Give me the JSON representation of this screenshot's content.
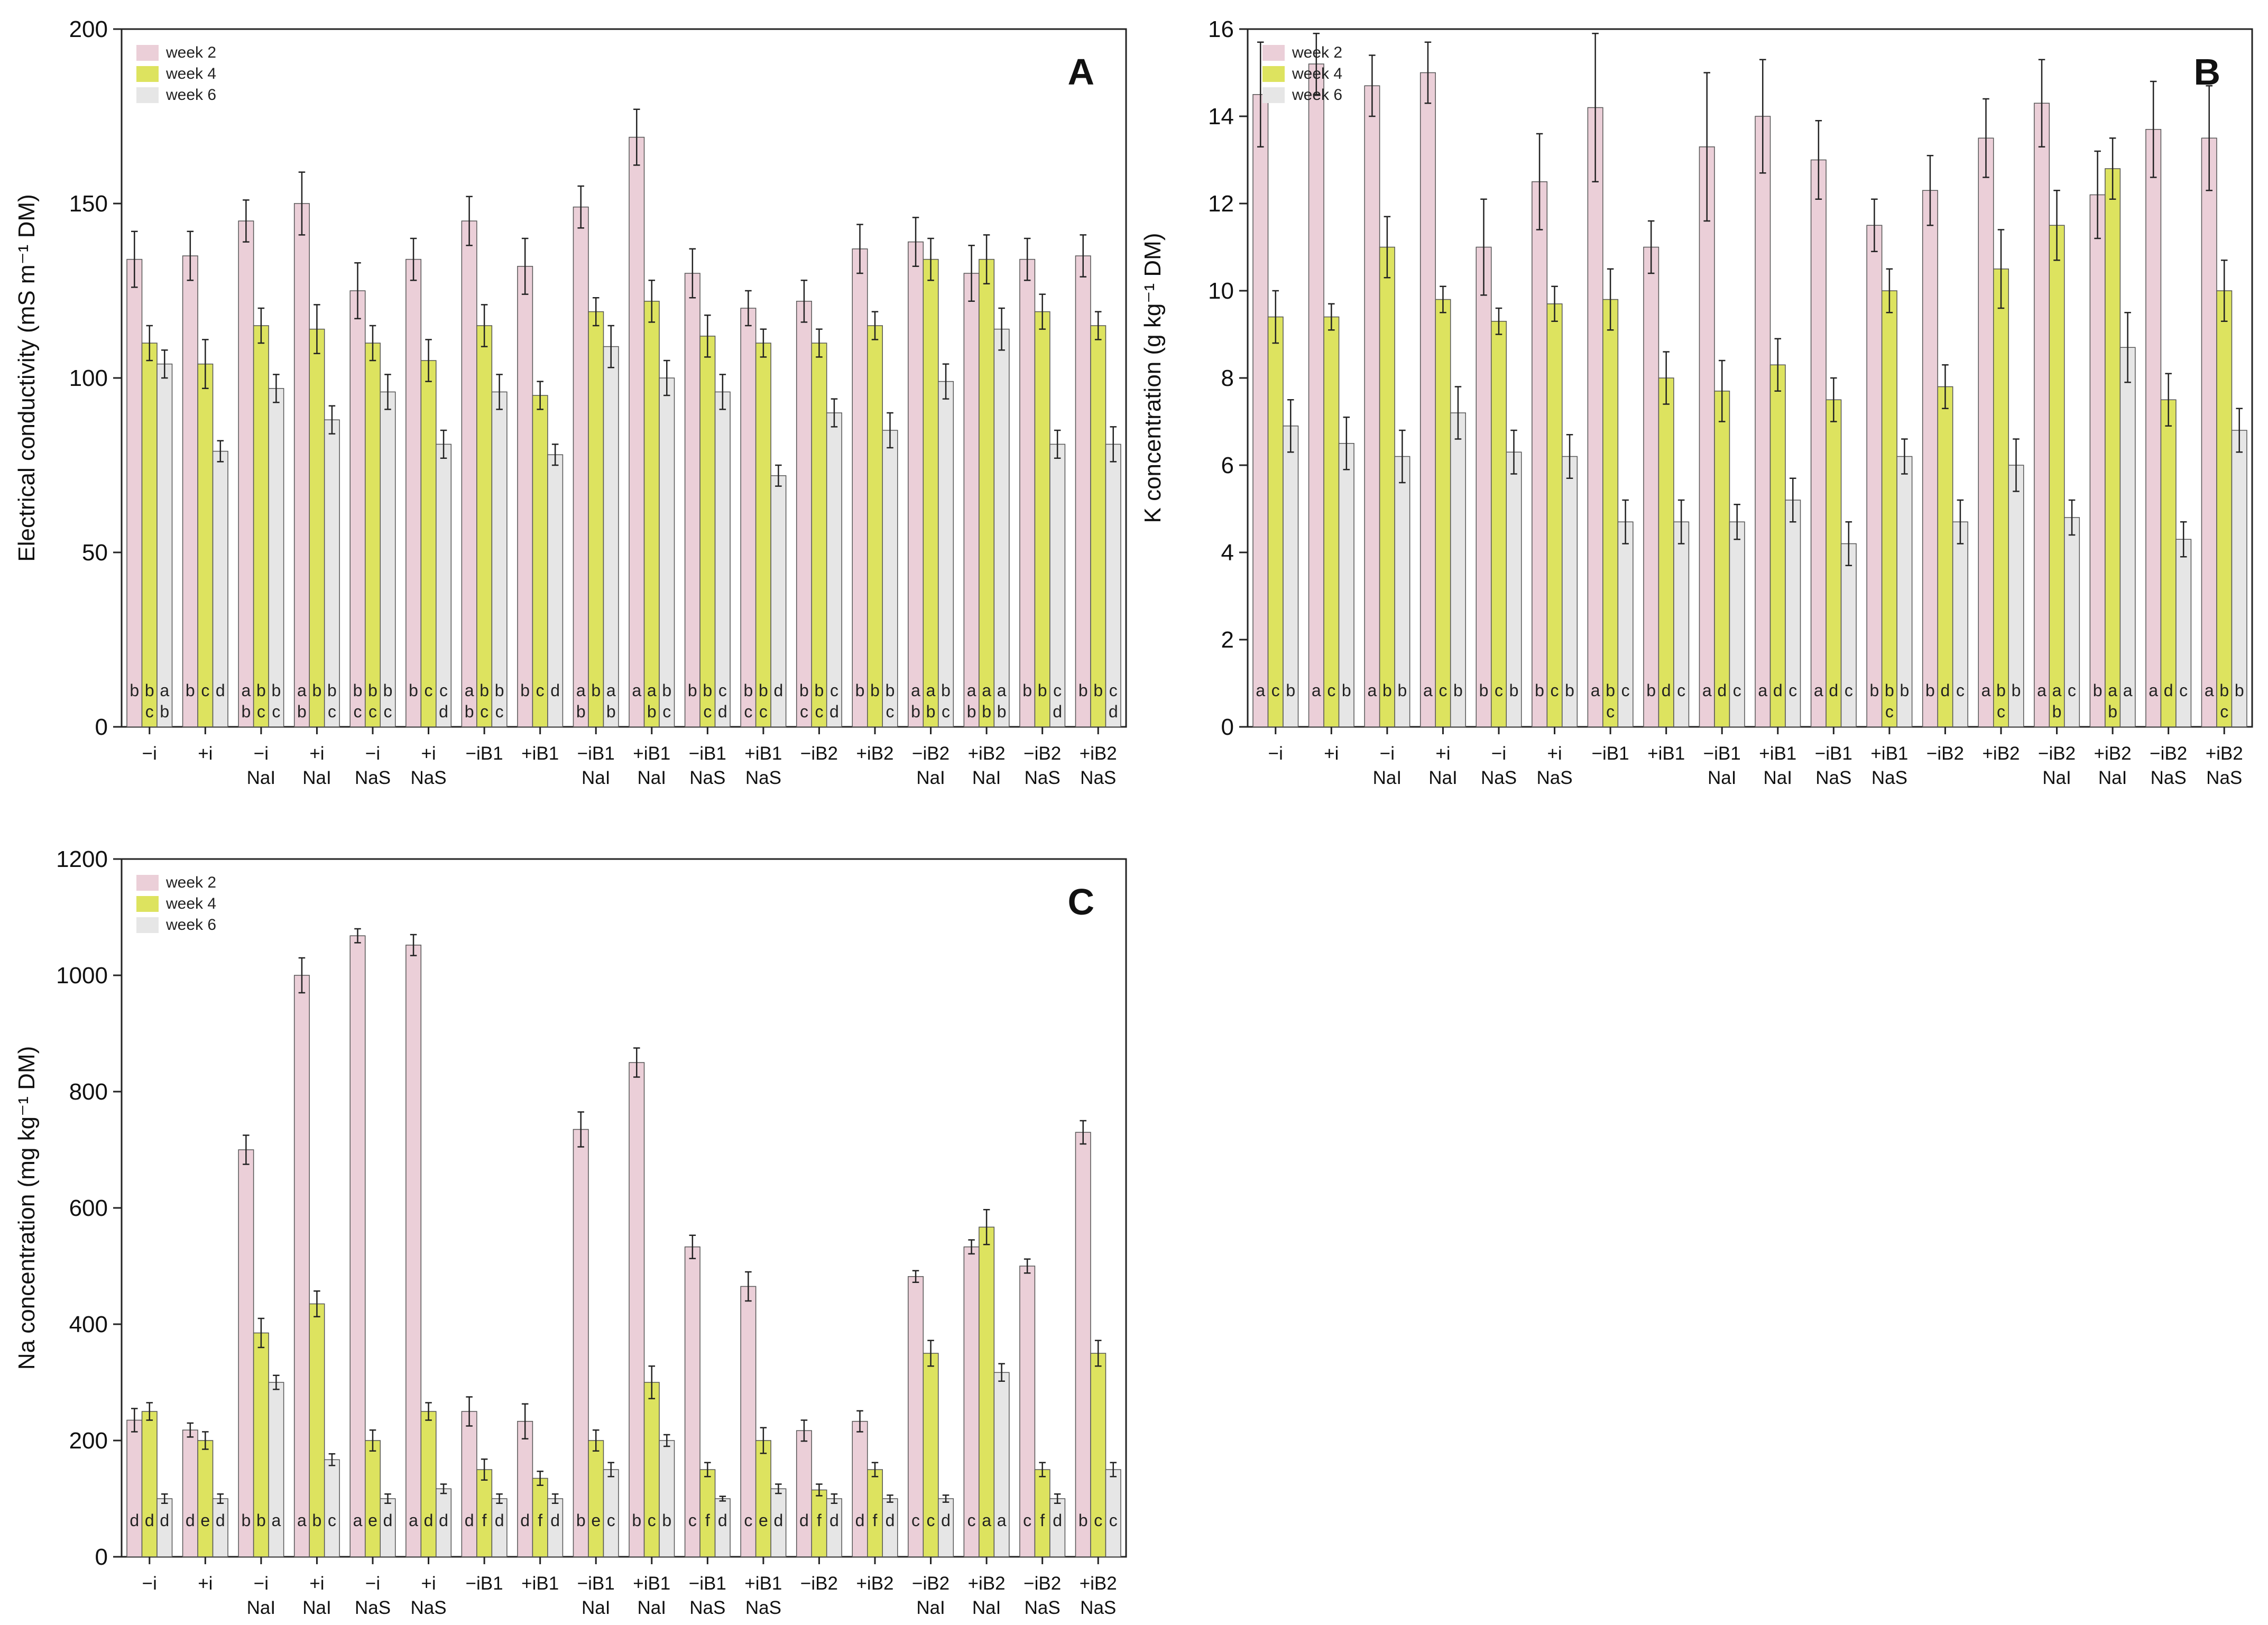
{
  "colors": {
    "week2": "#ebcfd8",
    "week4": "#dde35f",
    "week6": "#e6e6e6"
  },
  "legend": [
    "week 2",
    "week 4",
    "week 6"
  ],
  "categories": [
    [
      "−i",
      ""
    ],
    [
      "+i",
      ""
    ],
    [
      "−i",
      "NaI"
    ],
    [
      "+i",
      "NaI"
    ],
    [
      "−i",
      "NaS"
    ],
    [
      "+i",
      "NaS"
    ],
    [
      "−iB1",
      ""
    ],
    [
      "+iB1",
      ""
    ],
    [
      "−iB1",
      "NaI"
    ],
    [
      "+iB1",
      "NaI"
    ],
    [
      "−iB1",
      "NaS"
    ],
    [
      "+iB1",
      "NaS"
    ],
    [
      "−iB2",
      ""
    ],
    [
      "+iB2",
      ""
    ],
    [
      "−iB2",
      "NaI"
    ],
    [
      "+iB2",
      "NaI"
    ],
    [
      "−iB2",
      "NaS"
    ],
    [
      "+iB2",
      "NaS"
    ]
  ],
  "chart_data": [
    {
      "panel": "A",
      "type": "bar",
      "ylabel": "Electrical conductivity (mS m⁻¹ DM)",
      "ylim": [
        0,
        200
      ],
      "yticks": [
        0,
        50,
        100,
        150,
        200
      ],
      "series": [
        {
          "name": "week 2",
          "values": [
            134,
            135,
            145,
            150,
            125,
            134,
            145,
            132,
            149,
            169,
            130,
            120,
            122,
            137,
            139,
            130,
            134,
            135
          ],
          "errors": [
            8,
            7,
            6,
            9,
            8,
            6,
            7,
            8,
            6,
            8,
            7,
            5,
            6,
            7,
            7,
            8,
            6,
            6
          ]
        },
        {
          "name": "week 4",
          "values": [
            110,
            104,
            115,
            114,
            110,
            105,
            115,
            95,
            119,
            122,
            112,
            110,
            110,
            115,
            134,
            134,
            119,
            115
          ],
          "errors": [
            5,
            7,
            5,
            7,
            5,
            6,
            6,
            4,
            4,
            6,
            6,
            4,
            4,
            4,
            6,
            7,
            5,
            4
          ]
        },
        {
          "name": "week 6",
          "values": [
            104,
            79,
            97,
            88,
            96,
            81,
            96,
            78,
            109,
            100,
            96,
            72,
            90,
            85,
            99,
            114,
            81,
            81
          ],
          "errors": [
            4,
            3,
            4,
            4,
            5,
            4,
            5,
            3,
            6,
            5,
            5,
            3,
            4,
            5,
            5,
            6,
            4,
            5
          ]
        }
      ],
      "letters": [
        [
          "b",
          "b\nc",
          "a\nb"
        ],
        [
          "b",
          "c",
          "d"
        ],
        [
          "a\nb",
          "b\nc",
          "b\nc"
        ],
        [
          "a\nb",
          "b",
          "b\nc"
        ],
        [
          "b\nc",
          "b\nc",
          "b\nc"
        ],
        [
          "b",
          "c",
          "c\nd"
        ],
        [
          "a\nb",
          "b\nc",
          "b\nc"
        ],
        [
          "b",
          "c",
          "d"
        ],
        [
          "a\nb",
          "b",
          "a\nb"
        ],
        [
          "a",
          "a\nb",
          "b\nc"
        ],
        [
          "b",
          "b\nc",
          "c\nd"
        ],
        [
          "b\nc",
          "b\nc",
          "d"
        ],
        [
          "b\nc",
          "b\nc",
          "c\nd"
        ],
        [
          "b",
          "b",
          "b\nc"
        ],
        [
          "a\nb",
          "a\nb",
          "b\nc"
        ],
        [
          "a\nb",
          "a\nb",
          "a\nb"
        ],
        [
          "b",
          "b",
          "c\nd"
        ],
        [
          "b",
          "b",
          "c\nd"
        ]
      ]
    },
    {
      "panel": "B",
      "type": "bar",
      "ylabel": "K concentration (g kg⁻¹ DM)",
      "ylim": [
        0,
        16
      ],
      "yticks": [
        0,
        2,
        4,
        6,
        8,
        10,
        12,
        14,
        16
      ],
      "series": [
        {
          "name": "week 2",
          "values": [
            14.5,
            15.2,
            14.7,
            15.0,
            11.0,
            12.5,
            14.2,
            11.0,
            13.3,
            14.0,
            13.0,
            11.5,
            12.3,
            13.5,
            14.3,
            12.2,
            13.7,
            13.5
          ],
          "errors": [
            1.2,
            0.7,
            0.7,
            0.7,
            1.1,
            1.1,
            1.7,
            0.6,
            1.7,
            1.3,
            0.9,
            0.6,
            0.8,
            0.9,
            1.0,
            1.0,
            1.1,
            1.2
          ]
        },
        {
          "name": "week 4",
          "values": [
            9.4,
            9.4,
            11.0,
            9.8,
            9.3,
            9.7,
            9.8,
            8.0,
            7.7,
            8.3,
            7.5,
            10.0,
            7.8,
            10.5,
            11.5,
            12.8,
            7.5,
            10.0
          ],
          "errors": [
            0.6,
            0.3,
            0.7,
            0.3,
            0.3,
            0.4,
            0.7,
            0.6,
            0.7,
            0.6,
            0.5,
            0.5,
            0.5,
            0.9,
            0.8,
            0.7,
            0.6,
            0.7
          ]
        },
        {
          "name": "week 6",
          "values": [
            6.9,
            6.5,
            6.2,
            7.2,
            6.3,
            6.2,
            4.7,
            4.7,
            4.7,
            5.2,
            4.2,
            6.2,
            4.7,
            6.0,
            4.8,
            8.7,
            4.3,
            6.8
          ],
          "errors": [
            0.6,
            0.6,
            0.6,
            0.6,
            0.5,
            0.5,
            0.5,
            0.5,
            0.4,
            0.5,
            0.5,
            0.4,
            0.5,
            0.6,
            0.4,
            0.8,
            0.4,
            0.5
          ]
        }
      ],
      "letters": [
        [
          "a",
          "c",
          "b"
        ],
        [
          "a",
          "c",
          "b"
        ],
        [
          "a",
          "b",
          "b"
        ],
        [
          "a",
          "c",
          "b"
        ],
        [
          "b",
          "c",
          "b"
        ],
        [
          "b",
          "c",
          "b"
        ],
        [
          "a",
          "b\nc",
          "c"
        ],
        [
          "b",
          "d",
          "c"
        ],
        [
          "a",
          "d",
          "c"
        ],
        [
          "a",
          "d",
          "c"
        ],
        [
          "a",
          "d",
          "c"
        ],
        [
          "b",
          "b\nc",
          "b"
        ],
        [
          "b",
          "d",
          "c"
        ],
        [
          "a",
          "b\nc",
          "b"
        ],
        [
          "a",
          "a\nb",
          "c"
        ],
        [
          "b",
          "a\nb",
          "a"
        ],
        [
          "a",
          "d",
          "c"
        ],
        [
          "a",
          "b\nc",
          "b"
        ]
      ]
    },
    {
      "panel": "C",
      "type": "bar",
      "ylabel": "Na concentration (mg kg⁻¹ DM)",
      "ylim": [
        0,
        1200
      ],
      "yticks": [
        0,
        200,
        400,
        600,
        800,
        1000,
        1200
      ],
      "series": [
        {
          "name": "week 2",
          "values": [
            235,
            218,
            700,
            1000,
            1068,
            1052,
            250,
            233,
            735,
            850,
            533,
            465,
            217,
            233,
            482,
            533,
            500,
            730
          ],
          "errors": [
            20,
            12,
            25,
            30,
            12,
            18,
            25,
            30,
            30,
            25,
            20,
            25,
            18,
            18,
            10,
            12,
            12,
            20
          ]
        },
        {
          "name": "week 4",
          "values": [
            250,
            200,
            385,
            435,
            200,
            250,
            150,
            135,
            200,
            300,
            150,
            200,
            115,
            150,
            350,
            567,
            150,
            350
          ],
          "errors": [
            15,
            15,
            25,
            22,
            18,
            15,
            18,
            12,
            18,
            28,
            12,
            22,
            10,
            12,
            22,
            30,
            12,
            22
          ]
        },
        {
          "name": "week 6",
          "values": [
            100,
            100,
            300,
            167,
            100,
            117,
            100,
            100,
            150,
            200,
            100,
            117,
            100,
            100,
            100,
            317,
            100,
            150
          ],
          "errors": [
            8,
            8,
            12,
            10,
            8,
            8,
            8,
            8,
            12,
            10,
            4,
            8,
            8,
            6,
            6,
            15,
            8,
            12
          ]
        }
      ],
      "letters": [
        [
          "d",
          "d",
          "d"
        ],
        [
          "d",
          "e",
          "d"
        ],
        [
          "b",
          "b",
          "a"
        ],
        [
          "a",
          "b",
          "c"
        ],
        [
          "a",
          "e",
          "d"
        ],
        [
          "a",
          "d",
          "d"
        ],
        [
          "d",
          "f",
          "d"
        ],
        [
          "d",
          "f",
          "d"
        ],
        [
          "b",
          "e",
          "c"
        ],
        [
          "b",
          "c",
          "b"
        ],
        [
          "c",
          "f",
          "d"
        ],
        [
          "c",
          "e",
          "d"
        ],
        [
          "d",
          "f",
          "d"
        ],
        [
          "d",
          "f",
          "d"
        ],
        [
          "c",
          "c",
          "d"
        ],
        [
          "c",
          "a",
          "a"
        ],
        [
          "c",
          "f",
          "d"
        ],
        [
          "b",
          "c",
          "c"
        ]
      ]
    }
  ]
}
